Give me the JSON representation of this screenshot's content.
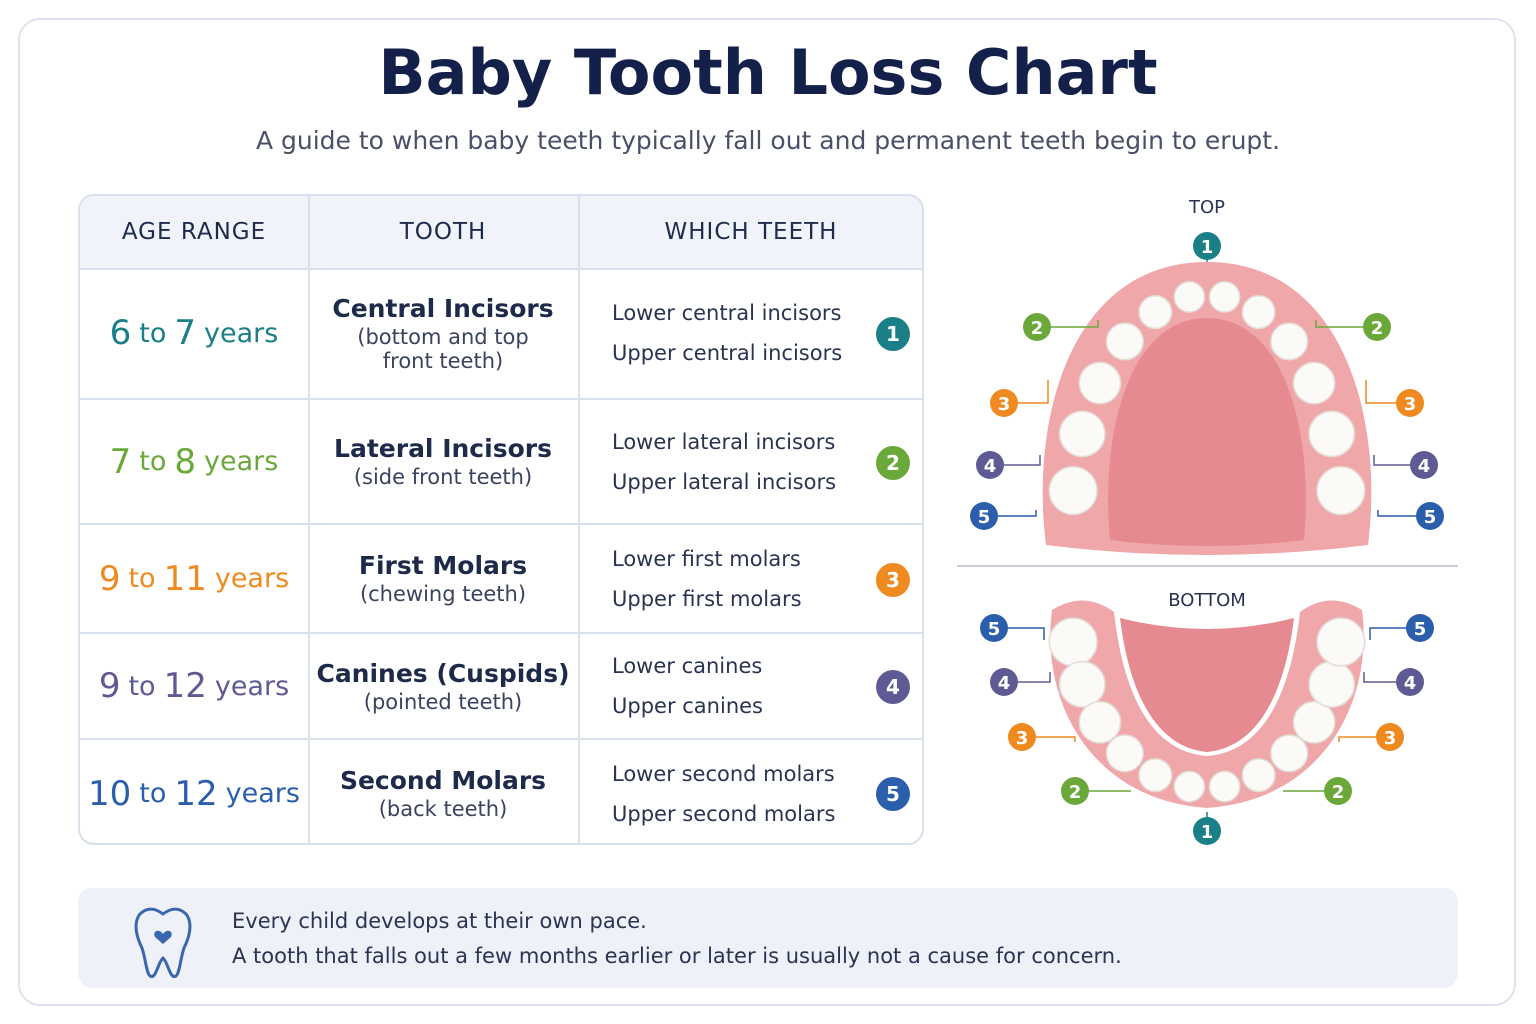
{
  "header": {
    "title": "Baby Tooth Loss Chart",
    "subtitle": "A guide to when baby teeth typically fall out and permanent teeth begin to erupt."
  },
  "table": {
    "columns": [
      "AGE RANGE",
      "TOOTH",
      "WHICH TEETH"
    ],
    "rows": [
      {
        "age_from": 6,
        "connector": "to",
        "age_to": 7,
        "unit": "years",
        "tooth": "Central Incisors",
        "description": "(bottom and top front teeth)",
        "lower": "Lower central incisors",
        "upper": "Upper central incisors",
        "number": 1,
        "color": "#1a7f86"
      },
      {
        "age_from": 7,
        "connector": "to",
        "age_to": 8,
        "unit": "years",
        "tooth": "Lateral Incisors",
        "description": "(side front teeth)",
        "lower": "Lower lateral incisors",
        "upper": "Upper lateral incisors",
        "number": 2,
        "color": "#6aa83a"
      },
      {
        "age_from": 9,
        "connector": "to",
        "age_to": 11,
        "unit": "years",
        "tooth": "First Molars",
        "description": "(chewing teeth)",
        "lower": "Lower first molars",
        "upper": "Upper first molars",
        "number": 3,
        "color": "#ee8a1f"
      },
      {
        "age_from": 9,
        "connector": "to",
        "age_to": 12,
        "unit": "years",
        "tooth": "Canines (Cuspids)",
        "description": "(pointed teeth)",
        "lower": "Lower canines",
        "upper": "Upper canines",
        "number": 4,
        "color": "#5e5b94"
      },
      {
        "age_from": 10,
        "connector": "to",
        "age_to": 12,
        "unit": "years",
        "tooth": "Second Molars",
        "description": "(back teeth)",
        "lower": "Lower second molars",
        "upper": "Upper second molars",
        "number": 5,
        "color": "#2c5fab"
      }
    ]
  },
  "diagram": {
    "top_label": "TOP",
    "bottom_label": "BOTTOM"
  },
  "note": {
    "lines": [
      "Every child develops at their own pace.",
      "A tooth that falls out a few months earlier or later is usually not a cause for concern."
    ]
  }
}
